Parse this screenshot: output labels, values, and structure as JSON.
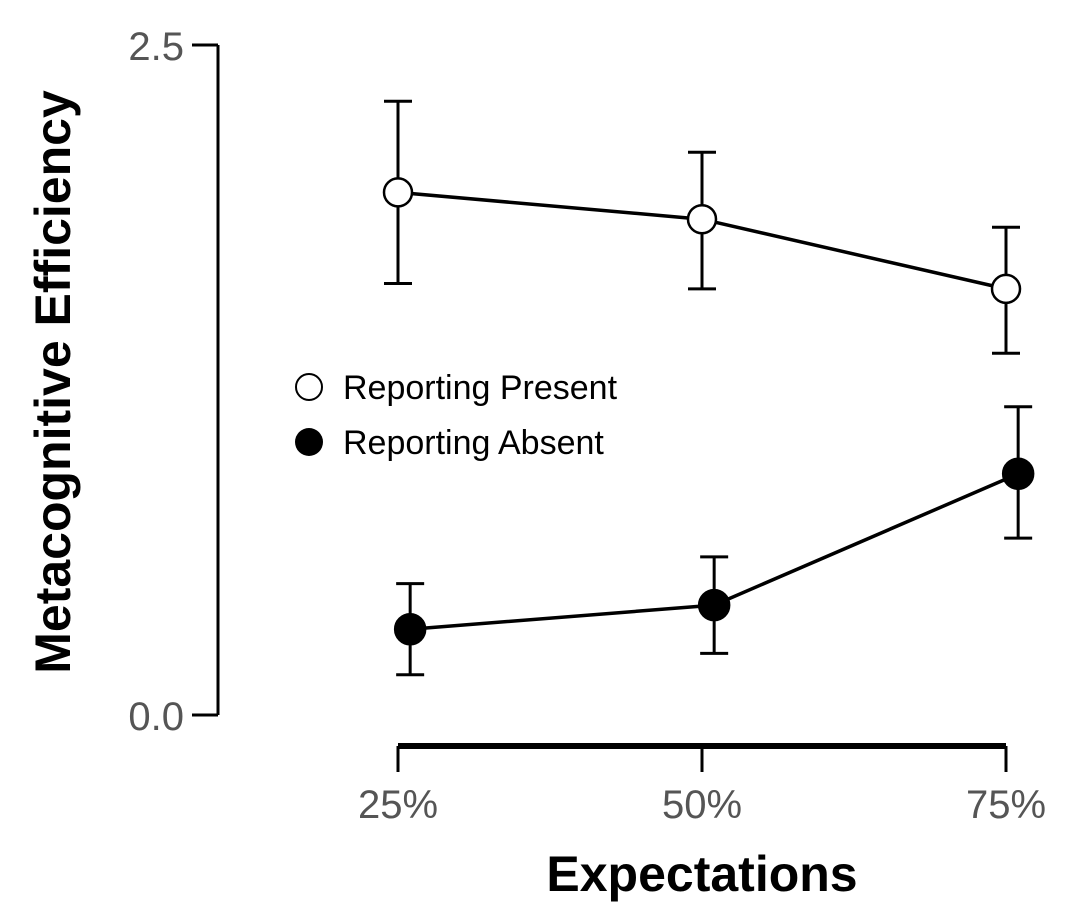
{
  "chart_data": {
    "type": "line",
    "title": "",
    "xlabel": "Expectations",
    "ylabel": "Metacognitive Efficiency",
    "categories": [
      "25%",
      "50%",
      "75%"
    ],
    "ylim": [
      0.0,
      2.5
    ],
    "yticks": [
      "0.0",
      "2.5"
    ],
    "grid": false,
    "legend_position": "left-center",
    "error_bars": true,
    "series": [
      {
        "name": "Reporting Present",
        "marker": "open-circle",
        "x": [
          25,
          50,
          75
        ],
        "values": [
          1.95,
          1.85,
          1.59
        ],
        "error_low": [
          1.61,
          1.59,
          1.35
        ],
        "error_high": [
          2.29,
          2.1,
          1.82
        ]
      },
      {
        "name": "Reporting Absent",
        "marker": "filled-circle",
        "x": [
          26,
          51,
          76
        ],
        "values": [
          0.32,
          0.41,
          0.9
        ],
        "error_low": [
          0.15,
          0.23,
          0.66
        ],
        "error_high": [
          0.49,
          0.59,
          1.15
        ]
      }
    ]
  }
}
